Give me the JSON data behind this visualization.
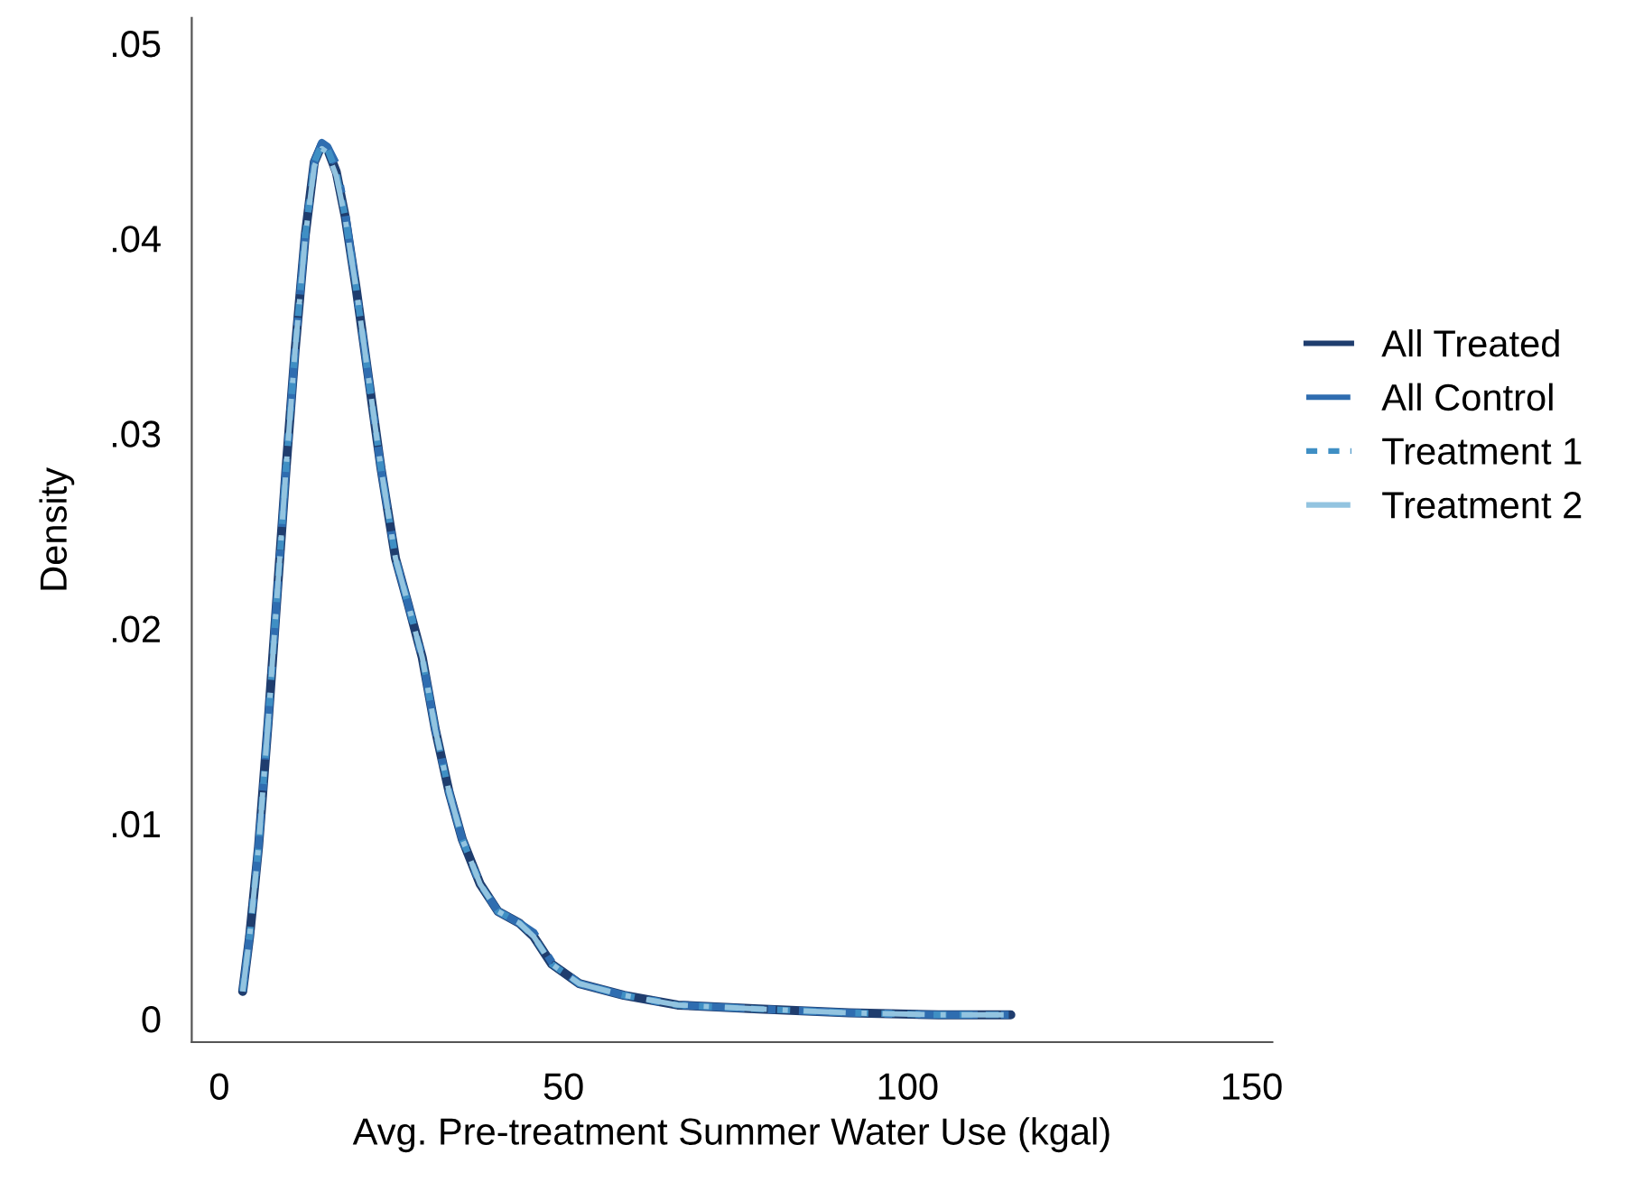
{
  "chart_data": {
    "type": "line",
    "xlabel": "Avg. Pre-treatment Summer Water Use (kgal)",
    "ylabel": "Density",
    "xlim": [
      -4,
      153
    ],
    "ylim": [
      -0.0012,
      0.0513
    ],
    "xticks": [
      0,
      50,
      100,
      150
    ],
    "yticks": [
      {
        "value": 0,
        "label": "0"
      },
      {
        "value": 0.01,
        "label": ".01"
      },
      {
        "value": 0.02,
        "label": ".02"
      },
      {
        "value": 0.03,
        "label": ".03"
      },
      {
        "value": 0.04,
        "label": ".04"
      },
      {
        "value": 0.05,
        "label": ".05"
      }
    ],
    "grid": false,
    "legend": "right",
    "marker": "none",
    "x": [
      3.4,
      4.4,
      5.7,
      7.1,
      8.4,
      9.7,
      11.0,
      12.5,
      13.8,
      14.9,
      15.7,
      17.0,
      18.3,
      19.9,
      21.7,
      23.5,
      25.6,
      27.4,
      29.5,
      31.4,
      33.4,
      35.3,
      37.9,
      40.5,
      43.6,
      45.7,
      48.3,
      52.3,
      58.8,
      66.6,
      78.4,
      91.5,
      104.5,
      115
    ],
    "series": [
      {
        "name": "All Treated",
        "color": "#1f3d6e",
        "line_style": "solid",
        "values": [
          0.0014,
          0.0042,
          0.0088,
          0.0152,
          0.0217,
          0.0282,
          0.0342,
          0.0402,
          0.0439,
          0.0448,
          0.0446,
          0.0434,
          0.0411,
          0.0374,
          0.0328,
          0.0282,
          0.0236,
          0.0213,
          0.0185,
          0.0148,
          0.0116,
          0.0092,
          0.0069,
          0.0055,
          0.0049,
          0.0042,
          0.0028,
          0.0018,
          0.0012,
          0.0007,
          0.0005,
          0.0003,
          0.0002,
          0.0002
        ]
      },
      {
        "name": "All Control",
        "color": "#2f6db0",
        "line_style": "dashdot",
        "values": [
          0.0014,
          0.0042,
          0.0088,
          0.0152,
          0.0217,
          0.0282,
          0.0342,
          0.0402,
          0.0439,
          0.0449,
          0.0447,
          0.0438,
          0.0413,
          0.0374,
          0.0328,
          0.0282,
          0.0236,
          0.0213,
          0.0185,
          0.0148,
          0.0116,
          0.0092,
          0.0069,
          0.0055,
          0.0049,
          0.0044,
          0.0029,
          0.0018,
          0.0012,
          0.0007,
          0.0005,
          0.0003,
          0.0002,
          0.0002
        ]
      },
      {
        "name": "Treatment 1",
        "color": "#3f8fc4",
        "line_style": "dotted",
        "values": [
          0.0014,
          0.0042,
          0.0088,
          0.0152,
          0.0217,
          0.0282,
          0.0342,
          0.0402,
          0.0439,
          0.0448,
          0.0446,
          0.0434,
          0.0411,
          0.0374,
          0.0328,
          0.0282,
          0.0236,
          0.0213,
          0.0185,
          0.0148,
          0.0116,
          0.0092,
          0.0069,
          0.0055,
          0.0049,
          0.0042,
          0.0028,
          0.0018,
          0.0012,
          0.0007,
          0.0005,
          0.0003,
          0.0002,
          0.0002
        ]
      },
      {
        "name": "Treatment 2",
        "color": "#93c4e0",
        "line_style": "dashdot",
        "values": [
          0.0014,
          0.0042,
          0.0088,
          0.0152,
          0.0217,
          0.0282,
          0.0342,
          0.0401,
          0.0437,
          0.0446,
          0.0444,
          0.0432,
          0.041,
          0.0374,
          0.0328,
          0.0282,
          0.0236,
          0.0213,
          0.0185,
          0.0148,
          0.0116,
          0.0092,
          0.0069,
          0.0055,
          0.0049,
          0.0042,
          0.0028,
          0.0018,
          0.0012,
          0.0007,
          0.0005,
          0.0003,
          0.0002,
          0.0002
        ]
      }
    ]
  }
}
